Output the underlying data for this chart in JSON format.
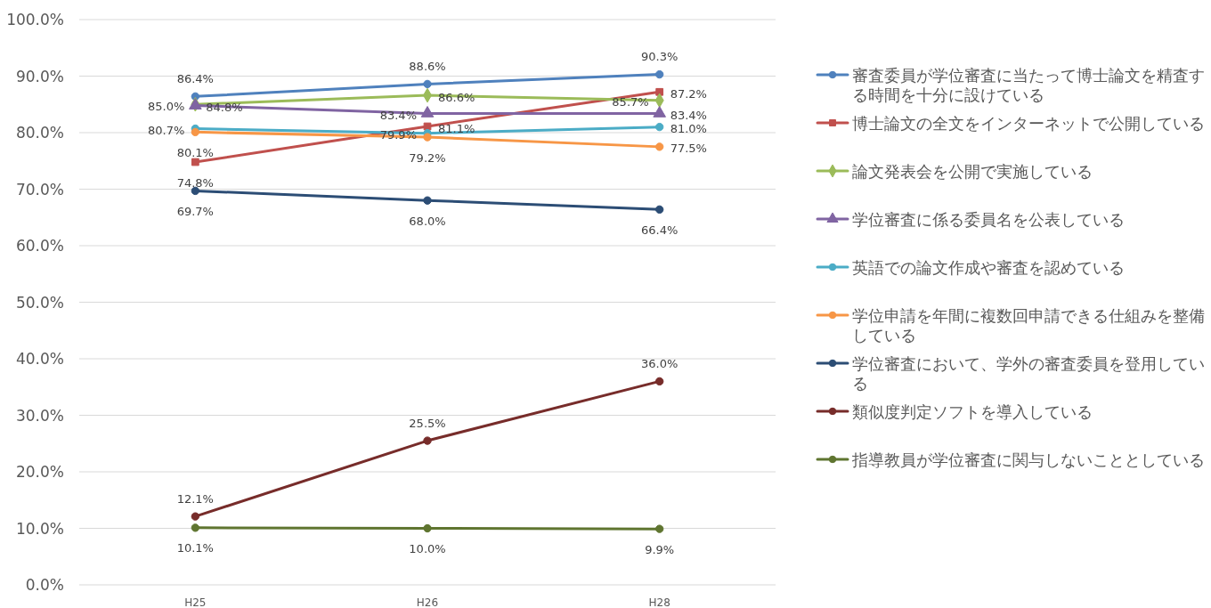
{
  "chart_data": {
    "type": "line",
    "categories": [
      "H25",
      "H26",
      "H28"
    ],
    "series": [
      {
        "name": "審査委員が学位審査に当たって博士論文を精査する時間を十分に設けている",
        "color": "#4f81bd",
        "marker": "circle",
        "values": [
          86.4,
          88.6,
          90.3
        ],
        "value_labels": [
          "86.4%",
          "88.6%",
          "90.3%"
        ]
      },
      {
        "name": "博士論文の全文をインターネットで公開している",
        "color": "#c0504d",
        "marker": "square",
        "values": [
          74.8,
          81.1,
          87.2
        ],
        "value_labels": [
          "74.8%",
          "81.1%",
          "87.2%"
        ]
      },
      {
        "name": "論文発表会を公開で実施している",
        "color": "#9bbb59",
        "marker": "diamond",
        "values": [
          85.0,
          86.6,
          85.7
        ],
        "value_labels": [
          "85.0%",
          "86.6%",
          "85.7%"
        ]
      },
      {
        "name": "学位審査に係る委員名を公表している",
        "color": "#8064a2",
        "marker": "triangle",
        "values": [
          84.8,
          83.4,
          83.4
        ],
        "value_labels": [
          "84.8%",
          "83.4%",
          "83.4%"
        ]
      },
      {
        "name": "英語での論文作成や審査を認めている",
        "color": "#4bacc6",
        "marker": "circle",
        "values": [
          80.7,
          79.9,
          81.0
        ],
        "value_labels": [
          "80.7%",
          "79.9%",
          "81.0%"
        ]
      },
      {
        "name": "学位申請を年間に複数回申請できる仕組みを整備している",
        "color": "#f79646",
        "marker": "circle",
        "values": [
          80.1,
          79.2,
          77.5
        ],
        "value_labels": [
          "80.1%",
          "79.2%",
          "77.5%"
        ]
      },
      {
        "name": "学位審査において、学外の審査委員を登用している",
        "color": "#2c4d75",
        "marker": "circle",
        "values": [
          69.7,
          68.0,
          66.4
        ],
        "value_labels": [
          "69.7%",
          "68.0%",
          "66.4%"
        ]
      },
      {
        "name": "類似度判定ソフトを導入している",
        "color": "#772c2a",
        "marker": "circle",
        "values": [
          12.1,
          25.5,
          36.0
        ],
        "value_labels": [
          "12.1%",
          "25.5%",
          "36.0%"
        ]
      },
      {
        "name": "指導教員が学位審査に関与しないこととしている",
        "color": "#5f7530",
        "marker": "circle",
        "values": [
          10.1,
          10.0,
          9.9
        ],
        "value_labels": [
          "10.1%",
          "10.0%",
          "9.9%"
        ]
      }
    ],
    "ylim": [
      0,
      100
    ],
    "yticks": [
      {
        "value": 0,
        "label": "0.0%"
      },
      {
        "value": 10,
        "label": "10.0%"
      },
      {
        "value": 20,
        "label": "20.0%"
      },
      {
        "value": 30,
        "label": "30.0%"
      },
      {
        "value": 40,
        "label": "40.0%"
      },
      {
        "value": 50,
        "label": "50.0%"
      },
      {
        "value": 60,
        "label": "60.0%"
      },
      {
        "value": 70,
        "label": "70.0%"
      },
      {
        "value": 80,
        "label": "80.0%"
      },
      {
        "value": 90,
        "label": "90.0%"
      },
      {
        "value": 100,
        "label": "100.0%"
      }
    ],
    "grid": "y",
    "legend": "right"
  }
}
